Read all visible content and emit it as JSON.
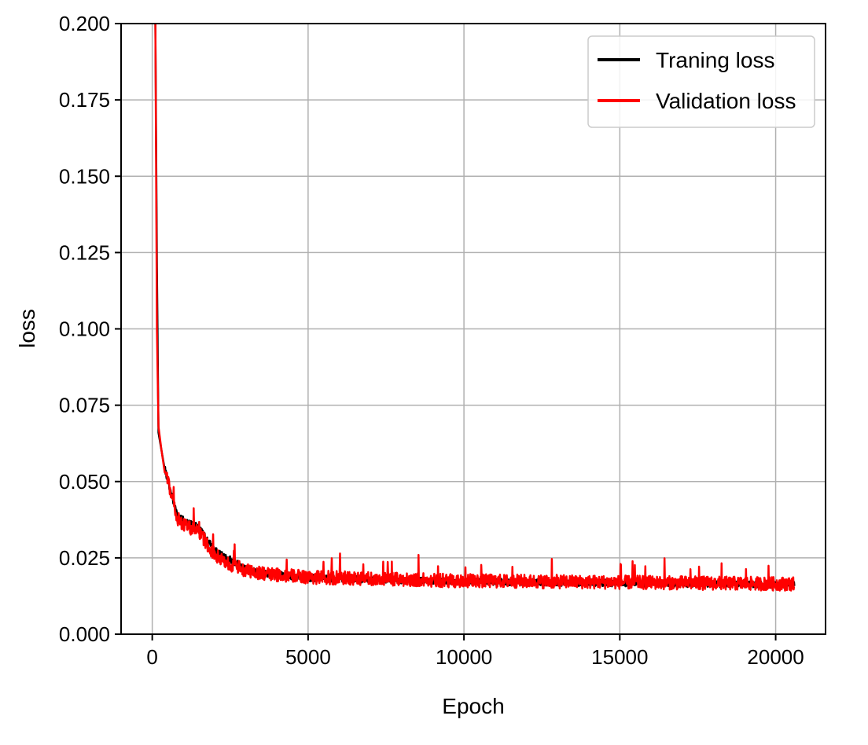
{
  "chart_data": {
    "type": "line",
    "title": "",
    "xlabel": "Epoch",
    "ylabel": "loss",
    "xlim": [
      -1000,
      21600
    ],
    "ylim": [
      0,
      0.2
    ],
    "xticks": [
      0,
      5000,
      10000,
      15000,
      20000
    ],
    "xtick_labels": [
      "0",
      "5000",
      "10000",
      "15000",
      "20000"
    ],
    "yticks": [
      0,
      0.025,
      0.05,
      0.075,
      0.1,
      0.125,
      0.15,
      0.175,
      0.2
    ],
    "ytick_labels": [
      "0.000",
      "0.025",
      "0.050",
      "0.075",
      "0.100",
      "0.125",
      "0.150",
      "0.175",
      "0.200"
    ],
    "grid": true,
    "legend_position": "top-right",
    "series": [
      {
        "name": "Traning loss",
        "color": "#000000",
        "x": [
          100,
          150,
          200,
          250,
          300,
          400,
          500,
          600,
          700,
          800,
          1000,
          1200,
          1400,
          1600,
          1800,
          2000,
          2500,
          3000,
          3500,
          4000,
          5000,
          6000,
          7000,
          8000,
          9000,
          10000,
          11000,
          12000,
          13000,
          14000,
          15000,
          16000,
          17000,
          18000,
          19000,
          20000,
          20600
        ],
        "y": [
          0.2,
          0.12,
          0.066,
          0.063,
          0.06,
          0.054,
          0.05,
          0.046,
          0.042,
          0.039,
          0.037,
          0.036,
          0.035,
          0.033,
          0.03,
          0.027,
          0.024,
          0.021,
          0.0195,
          0.019,
          0.018,
          0.0178,
          0.0175,
          0.0172,
          0.017,
          0.0168,
          0.0167,
          0.0166,
          0.0165,
          0.0164,
          0.0163,
          0.0162,
          0.0161,
          0.016,
          0.016,
          0.0158,
          0.0158
        ]
      },
      {
        "name": "Validation loss",
        "color": "#ff0000",
        "x": [
          100,
          150,
          200,
          250,
          300,
          400,
          500,
          600,
          700,
          800,
          1000,
          1200,
          1400,
          1600,
          1800,
          2000,
          2500,
          3000,
          3500,
          4000,
          5000,
          6000,
          7000,
          8000,
          9000,
          10000,
          11000,
          12000,
          13000,
          14000,
          15000,
          16000,
          17000,
          18000,
          19000,
          20000,
          20600
        ],
        "y": [
          0.2,
          0.1,
          0.068,
          0.064,
          0.06,
          0.053,
          0.049,
          0.045,
          0.041,
          0.037,
          0.035,
          0.034,
          0.033,
          0.031,
          0.028,
          0.025,
          0.022,
          0.02,
          0.019,
          0.0185,
          0.0178,
          0.0175,
          0.0172,
          0.017,
          0.0168,
          0.0166,
          0.0165,
          0.0164,
          0.0163,
          0.0162,
          0.0161,
          0.016,
          0.0159,
          0.0158,
          0.0157,
          0.0156,
          0.0156
        ]
      }
    ]
  }
}
